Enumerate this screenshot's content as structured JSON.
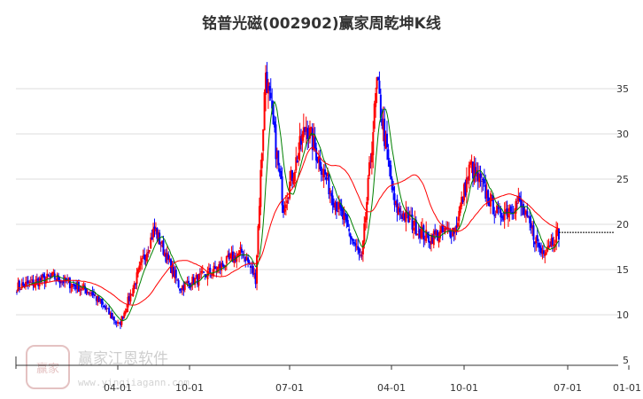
{
  "chart_data": {
    "type": "candlestick",
    "title": "铭普光磁(002902)赢家周乾坤K线",
    "xlabel": "",
    "ylabel": "",
    "ylim": [
      5,
      38
    ],
    "y_ticks": [
      5,
      10,
      15,
      20,
      25,
      30,
      35
    ],
    "x_ticks": [
      "04-01",
      "10-01",
      "07-01",
      "04-01",
      "10-01",
      "07-01",
      "01-01"
    ],
    "grid": "horizontal",
    "last_price": 19.1,
    "colors": {
      "up": "#ff0000",
      "down": "#0000ff",
      "neutral": "#800080",
      "ma_short": "#008000",
      "ma_long": "#ff0000",
      "grid": "#dddddd",
      "axis": "#333333",
      "dotted_line": "#000000"
    },
    "segments": [
      {
        "weeks": 30,
        "from": 13.0,
        "to": 14.2,
        "trend": "up"
      },
      {
        "weeks": 30,
        "from": 14.2,
        "to": 12.5,
        "trend": "down"
      },
      {
        "weeks": 22,
        "from": 12.5,
        "to": 8.8,
        "trend": "down"
      },
      {
        "weeks": 28,
        "from": 8.8,
        "to": 19.5,
        "trend": "up"
      },
      {
        "weeks": 20,
        "from": 19.5,
        "to": 13.0,
        "trend": "down"
      },
      {
        "weeks": 26,
        "from": 13.0,
        "to": 14.8,
        "trend": "flat"
      },
      {
        "weeks": 24,
        "from": 14.8,
        "to": 17.0,
        "trend": "up"
      },
      {
        "weeks": 10,
        "from": 17.0,
        "to": 14.0,
        "trend": "down"
      },
      {
        "weeks": 8,
        "from": 14.0,
        "to": 37.0,
        "trend": "up"
      },
      {
        "weeks": 14,
        "from": 37.0,
        "to": 22.0,
        "trend": "down"
      },
      {
        "weeks": 18,
        "from": 22.0,
        "to": 31.0,
        "trend": "up"
      },
      {
        "weeks": 20,
        "from": 31.0,
        "to": 23.5,
        "trend": "down"
      },
      {
        "weeks": 24,
        "from": 23.5,
        "to": 16.0,
        "trend": "down"
      },
      {
        "weeks": 12,
        "from": 16.0,
        "to": 35.5,
        "trend": "up"
      },
      {
        "weeks": 14,
        "from": 35.5,
        "to": 22.0,
        "trend": "down"
      },
      {
        "weeks": 26,
        "from": 22.0,
        "to": 18.5,
        "trend": "down"
      },
      {
        "weeks": 22,
        "from": 18.5,
        "to": 19.5,
        "trend": "flat"
      },
      {
        "weeks": 12,
        "from": 19.5,
        "to": 26.5,
        "trend": "up"
      },
      {
        "weeks": 22,
        "from": 26.5,
        "to": 21.0,
        "trend": "down"
      },
      {
        "weeks": 16,
        "from": 21.0,
        "to": 22.5,
        "trend": "up"
      },
      {
        "weeks": 18,
        "from": 22.5,
        "to": 17.0,
        "trend": "down"
      },
      {
        "weeks": 14,
        "from": 17.0,
        "to": 19.1,
        "trend": "up"
      }
    ],
    "moving_averages": [
      {
        "period": 10,
        "color": "ma_short"
      },
      {
        "period": 40,
        "color": "ma_long"
      }
    ]
  },
  "watermark": {
    "logo_text": "赢家",
    "brand": "赢家江恩软件",
    "url": "www.yingjiagann.com"
  }
}
